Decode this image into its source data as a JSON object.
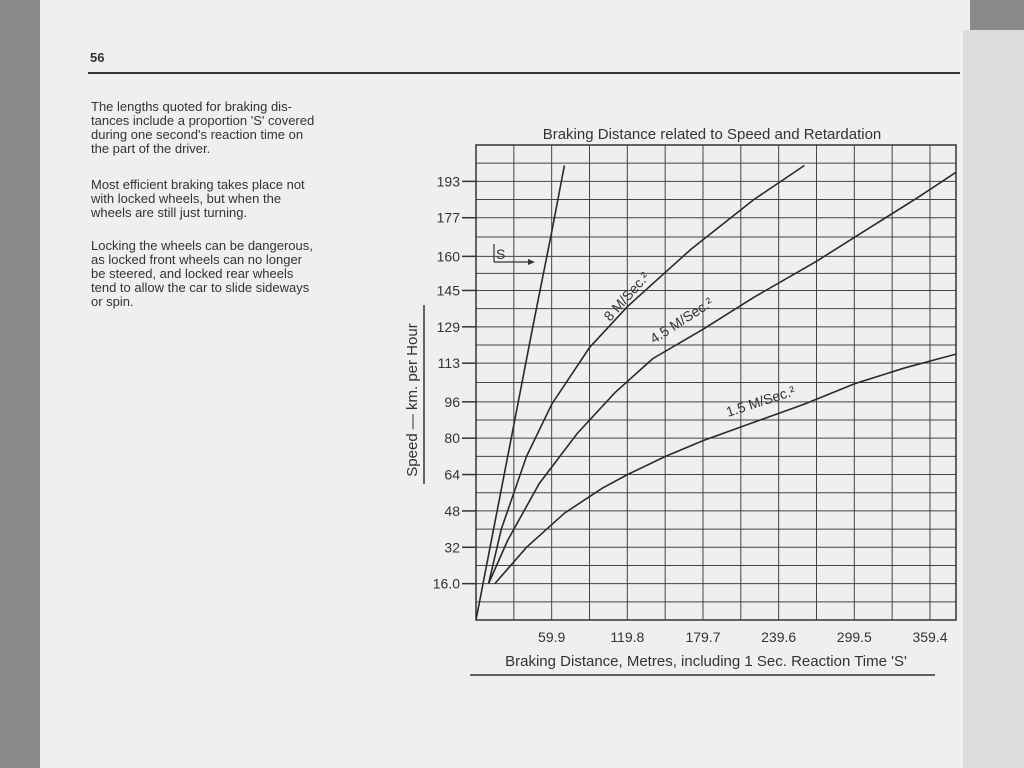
{
  "page": {
    "number": "56",
    "paragraphs": [
      [
        "The lengths quoted for braking dis-",
        "tances include a proportion 'S' covered",
        "during one second's reaction time on",
        "the part of the driver."
      ],
      [
        "Most efficient braking takes place not",
        "with locked wheels, but when the",
        "wheels are still just turning."
      ],
      [
        "Locking the wheels can be dangerous,",
        "as locked front wheels can no longer",
        "be steered, and locked rear wheels",
        "tend to allow the car to slide sideways",
        "or spin."
      ]
    ]
  },
  "chart_data": {
    "type": "line",
    "title": "Braking Distance related to Speed and Retardation",
    "xlabel": "Braking Distance, Metres, including 1 Sec. Reaction Time 'S'",
    "ylabel": "Speed — km. per Hour",
    "x_ticks": [
      "59.9",
      "119.8",
      "179.7",
      "239.6",
      "299.5",
      "359.4"
    ],
    "y_ticks": [
      "16.0",
      "32",
      "48",
      "64",
      "80",
      "96",
      "113",
      "129",
      "145",
      "160",
      "177",
      "193"
    ],
    "xlim": [
      0,
      380
    ],
    "ylim": [
      0,
      209
    ],
    "grid": true,
    "series": [
      {
        "name": "S",
        "x": [
          0,
          15,
          30,
          45,
          60,
          70
        ],
        "y": [
          0,
          43,
          86,
          129,
          171,
          200
        ]
      },
      {
        "name": "8 M/Sec.²",
        "x": [
          10,
          20,
          40,
          60,
          90,
          120,
          170,
          220,
          260
        ],
        "y": [
          16,
          40,
          72,
          95,
          120,
          138,
          163,
          185,
          200
        ]
      },
      {
        "name": "4.5 M/Sec.²",
        "x": [
          10,
          25,
          50,
          80,
          110,
          140,
          180,
          220,
          270,
          310,
          350,
          380
        ],
        "y": [
          16,
          35,
          60,
          82,
          100,
          115,
          128,
          142,
          158,
          172,
          186,
          197
        ]
      },
      {
        "name": "1.5 M/Sec.²",
        "x": [
          15,
          40,
          70,
          100,
          120,
          150,
          180,
          220,
          260,
          300,
          340,
          380
        ],
        "y": [
          16,
          32,
          47,
          58,
          64,
          72,
          79,
          87,
          95,
          104,
          111,
          117
        ]
      }
    ],
    "annotations": [
      {
        "label": "S"
      },
      {
        "label": "8 M/Sec.²"
      },
      {
        "label": "4.5 M/Sec.²"
      },
      {
        "label": "1.5 M/Sec.²"
      }
    ]
  }
}
